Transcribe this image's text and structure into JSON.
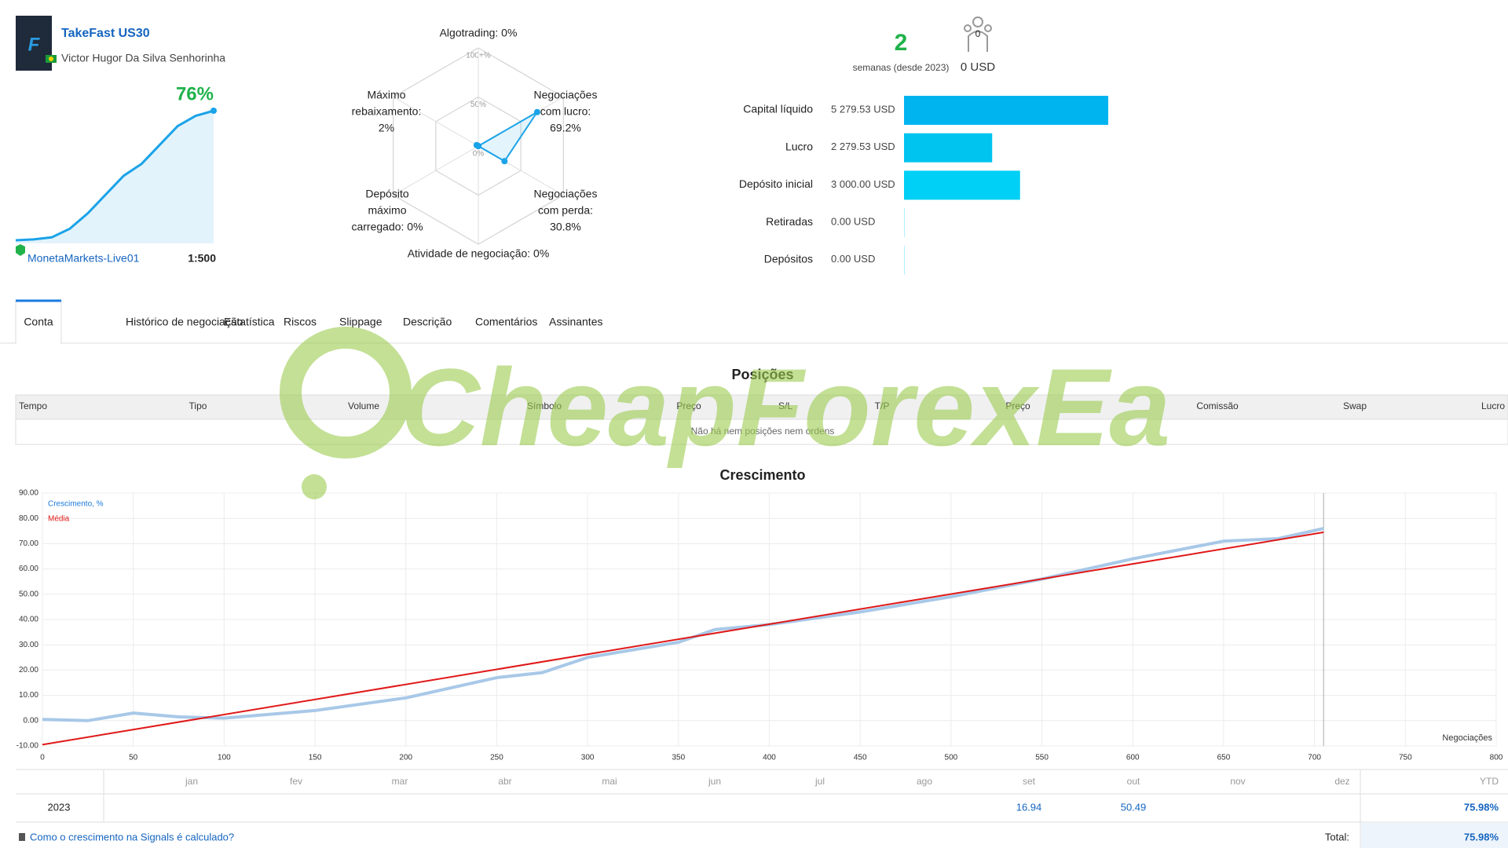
{
  "header": {
    "title": "TakeFast US30",
    "author": "Victor Hugor Da Silva Senhorinha",
    "growth": "76%",
    "server": "MonetaMarkets-Live01",
    "leverage": "1:500",
    "sparkline": [
      0.3,
      0.8,
      2,
      7,
      16,
      27,
      38,
      45,
      56,
      67,
      73,
      76
    ]
  },
  "radar": {
    "labels": [
      [
        "Algotrading: 0%"
      ],
      [
        "Negociações",
        "com lucro:",
        "69.2%"
      ],
      [
        "Negociações",
        "com perda:",
        "30.8%"
      ],
      [
        "Atividade de negociação: 0%"
      ],
      [
        "Depósito",
        "máximo",
        "carregado: 0%"
      ],
      [
        "Máximo",
        "rebaixamento:",
        "2%"
      ]
    ],
    "values": [
      0,
      69.2,
      30.8,
      0,
      0,
      2
    ],
    "scale": [
      {
        "value": 100,
        "label": "100+%"
      },
      {
        "value": 50,
        "label": "50%"
      },
      {
        "value": 0,
        "label": "0%"
      }
    ],
    "color": "#1aa3e8"
  },
  "summary": {
    "weeks": "2",
    "weeks_label": "semanas (desde 2023)",
    "subscribers": "0",
    "subscription": "0 USD"
  },
  "stats": {
    "labels": [
      "Capital líquido",
      "Lucro",
      "Depósito inicial",
      "Retiradas",
      "Depósitos"
    ],
    "values": [
      5279.53,
      2279.53,
      3000.0,
      0,
      0
    ],
    "value_labels": [
      "5 279.53 USD",
      "2 279.53 USD",
      "3 000.00 USD",
      "0.00 USD",
      "0.00 USD"
    ],
    "colors": [
      "#00b4f0",
      "#00c4f0",
      "#00d0f5",
      "#00d0f5",
      "#00d0f5"
    ]
  },
  "tabs": [
    "Conta",
    "Histórico de negociação",
    "Estatística",
    "Riscos",
    "Slippage",
    "Descrição",
    "Comentários",
    "Assinantes"
  ],
  "positions": {
    "title": "Posições",
    "headers": [
      "Tempo",
      "Tipo",
      "Volume",
      "Símbolo",
      "Preço",
      "S/L",
      "T/P",
      "Preço",
      "Comissão",
      "Swap",
      "Lucro"
    ],
    "empty": "Não há nem posições nem ordens"
  },
  "watermark": "CheapForexEa",
  "growth_chart": {
    "type": "line",
    "title": "Crescimento",
    "x_label": "Negociações",
    "xlim": [
      0,
      800
    ],
    "xticks": [
      0,
      50,
      100,
      150,
      200,
      250,
      300,
      350,
      400,
      450,
      500,
      550,
      600,
      650,
      700,
      750,
      800
    ],
    "ylim": [
      -10,
      90
    ],
    "yticks": [
      {
        "value": 90,
        "label": "90.00"
      },
      {
        "value": 80,
        "label": "80.00"
      },
      {
        "value": 70,
        "label": "70.00"
      },
      {
        "value": 60,
        "label": "60.00"
      },
      {
        "value": 50,
        "label": "50.00"
      },
      {
        "value": 40,
        "label": "40.00"
      },
      {
        "value": 30,
        "label": "30.00"
      },
      {
        "value": 20,
        "label": "20.00"
      },
      {
        "value": 10,
        "label": "10.00"
      },
      {
        "value": 0,
        "label": "0.00"
      },
      {
        "value": -10,
        "label": "-10.00"
      }
    ],
    "grid": true,
    "series": [
      {
        "name": "Crescimento, %",
        "color": "#a8c8e8",
        "x": [
          0,
          25,
          50,
          75,
          100,
          150,
          200,
          225,
          250,
          275,
          300,
          350,
          370,
          400,
          450,
          500,
          550,
          600,
          650,
          680,
          705
        ],
        "values": [
          0.5,
          0,
          3,
          1.5,
          1,
          4,
          9,
          13,
          17,
          19,
          25,
          31,
          36,
          38,
          43,
          49,
          56,
          64,
          71,
          72,
          76
        ]
      },
      {
        "name": "Média",
        "color": "#e01818",
        "x": [
          0,
          705
        ],
        "values": [
          -9.5,
          74.5
        ]
      }
    ]
  },
  "monthly": {
    "headers": [
      "jan",
      "fev",
      "mar",
      "abr",
      "mai",
      "jun",
      "jul",
      "ago",
      "set",
      "out",
      "nov",
      "dez"
    ],
    "ytd_header": "YTD",
    "rows": [
      {
        "year": "2023",
        "values": [
          null,
          null,
          null,
          null,
          null,
          null,
          null,
          null,
          "16.94",
          "50.49",
          null,
          null
        ],
        "ytd": "75.98%"
      }
    ],
    "total_label": "Total:",
    "total": "75.98%",
    "help": "Como o crescimento na Signals é calculado?"
  }
}
